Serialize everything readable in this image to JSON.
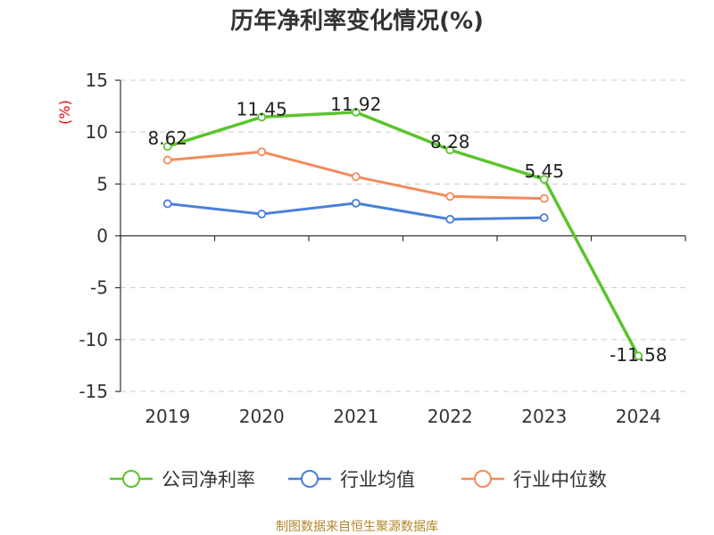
{
  "chart_data": {
    "type": "line",
    "title": "历年净利率变化情况(%)",
    "ylabel": "(%)",
    "categories": [
      "2019",
      "2020",
      "2021",
      "2022",
      "2023",
      "2024"
    ],
    "ylim": [
      -15,
      15
    ],
    "yticks": [
      15,
      10,
      5,
      0,
      -5,
      -10,
      -15
    ],
    "grid": true,
    "legend_position": "bottom",
    "series": [
      {
        "name": "公司净利率",
        "color": "#5bc42e",
        "values": [
          8.62,
          11.45,
          11.92,
          8.28,
          5.45,
          -11.58
        ],
        "labels": [
          "8.62",
          "11.45",
          "11.92",
          "8.28",
          "5.45",
          "-11.58"
        ]
      },
      {
        "name": "行业均值",
        "color": "#4a7fdb",
        "values": [
          3.1,
          2.1,
          3.15,
          1.6,
          1.75,
          null
        ]
      },
      {
        "name": "行业中位数",
        "color": "#f38b5b",
        "values": [
          7.3,
          8.1,
          5.7,
          3.8,
          3.6,
          null
        ]
      }
    ]
  },
  "footer": {
    "source": "制图数据来自恒生聚源数据库"
  }
}
